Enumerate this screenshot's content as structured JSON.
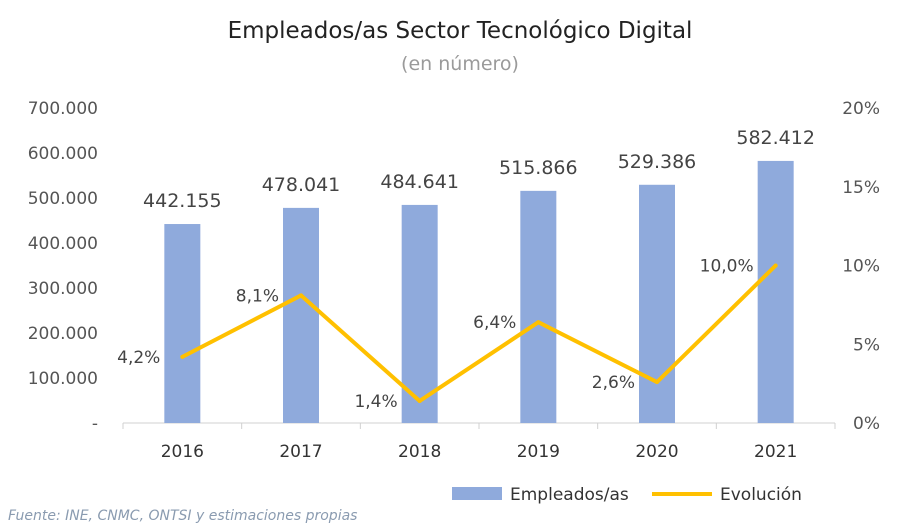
{
  "chart_data": {
    "type": "bar+line",
    "title": "Empleados/as Sector Tecnológico Digital",
    "subtitle": "(en número)",
    "categories": [
      "2016",
      "2017",
      "2018",
      "2019",
      "2020",
      "2021"
    ],
    "series": [
      {
        "name": "Empleados/as",
        "type": "bar",
        "axis": "left",
        "values": [
          442155,
          478041,
          484641,
          515866,
          529386,
          582412
        ],
        "labels": [
          "442.155",
          "478.041",
          "484.641",
          "515.866",
          "529.386",
          "582.412"
        ]
      },
      {
        "name": "Evolución",
        "type": "line",
        "axis": "right",
        "values": [
          4.2,
          8.1,
          1.4,
          6.4,
          2.6,
          10.0
        ],
        "labels": [
          "4,2%",
          "8,1%",
          "1,4%",
          "6,4%",
          "2,6%",
          "10,0%"
        ]
      }
    ],
    "left_axis": {
      "ylim": [
        0,
        700000
      ],
      "ticks": [
        0,
        100000,
        200000,
        300000,
        400000,
        500000,
        600000,
        700000
      ],
      "tick_labels": [
        "-",
        "100.000",
        "200.000",
        "300.000",
        "400.000",
        "500.000",
        "600.000",
        "700.000"
      ]
    },
    "right_axis": {
      "ylim": [
        0,
        20
      ],
      "ticks": [
        0,
        5,
        10,
        15,
        20
      ],
      "tick_labels": [
        "0%",
        "5%",
        "10%",
        "15%",
        "20%"
      ]
    },
    "grid": false,
    "legend": {
      "placement": "bottom-right",
      "entries": [
        "Empleados/as",
        "Evolución"
      ]
    },
    "source": "Fuente: INE, CNMC, ONTSI y estimaciones propias",
    "colors": {
      "bar": "#8faadc",
      "line": "#ffc000",
      "axis": "#d0d0d0"
    }
  }
}
